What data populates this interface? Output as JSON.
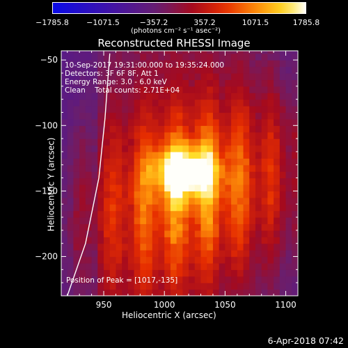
{
  "chart_data": {
    "type": "heatmap",
    "title": "Reconstructed RHESSI Image",
    "xlabel": "Heliocentric X (arcsec)",
    "ylabel": "Heliocentric Y (arcsec)",
    "xlim": [
      915,
      1110
    ],
    "ylim": [
      -230,
      -43
    ],
    "x_ticks": [
      950,
      1000,
      1050,
      1100
    ],
    "x_tick_labels": [
      "950",
      "1000",
      "1050",
      "1100"
    ],
    "y_ticks": [
      -50,
      -100,
      -150,
      -200
    ],
    "y_tick_labels": [
      "−50",
      "−100",
      "−150",
      "−200"
    ],
    "colorbar": {
      "min": -1785.8,
      "max": 1785.8,
      "tick_values": [
        -1785.8,
        -1071.5,
        -357.2,
        357.2,
        1071.5,
        1785.8
      ],
      "tick_labels": [
        "−1785.8",
        "−1071.5",
        "−357.2",
        "357.2",
        "1071.5",
        "1785.8"
      ],
      "unit": "(photons cm⁻² s⁻¹ asec⁻²)",
      "colormap": "blue-purple-red-yellow-white"
    },
    "peak": {
      "x": 1017,
      "y": -135,
      "value": 1785.8
    },
    "source_sigma_arcsec": [
      18,
      14
    ],
    "limb_curve": [
      [
        920,
        -230
      ],
      [
        935,
        -190
      ],
      [
        946,
        -140
      ],
      [
        951,
        -95
      ],
      [
        955,
        -45
      ]
    ],
    "annotations": [
      "10-Sep-2017 19:31:00.000 to 19:35:24.000",
      "Detectors: 3F 6F 8F, Att 1",
      "Energy Range: 3.0 - 6.0 keV",
      "Clean    Total counts: 2.71E+04",
      "Position of Peak = [1017,-135]"
    ]
  },
  "footer_text": "6-Apr-2018 07:42"
}
